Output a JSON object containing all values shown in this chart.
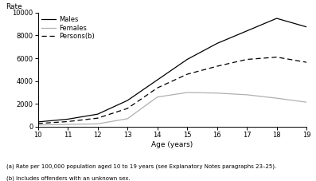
{
  "ages": [
    10,
    11,
    12,
    13,
    14,
    15,
    16,
    17,
    18,
    19
  ],
  "males": [
    420,
    660,
    1100,
    2300,
    4100,
    5900,
    7300,
    8400,
    9500,
    8750
  ],
  "females": [
    150,
    200,
    250,
    700,
    2600,
    3000,
    2950,
    2800,
    2500,
    2150
  ],
  "persons": [
    280,
    450,
    750,
    1600,
    3400,
    4600,
    5300,
    5900,
    6100,
    5650
  ],
  "ylabel": "Rate",
  "xlabel": "Age (years)",
  "ylim": [
    0,
    10000
  ],
  "yticks": [
    0,
    2000,
    4000,
    6000,
    8000,
    10000
  ],
  "xticks": [
    10,
    11,
    12,
    13,
    14,
    15,
    16,
    17,
    18,
    19
  ],
  "legend_labels": [
    "Males",
    "Females",
    "Persons(b)"
  ],
  "line_colors": [
    "#000000",
    "#b0b0b0",
    "#000000"
  ],
  "line_styles": [
    "-",
    "-",
    "--"
  ],
  "footnote1": "(a) Rate per 100,000 population aged 10 to 19 years (see Explanatory Notes paragraphs 23–25).",
  "footnote2": "(b) Includes offenders with an unknown sex.",
  "bg_color": "#ffffff"
}
